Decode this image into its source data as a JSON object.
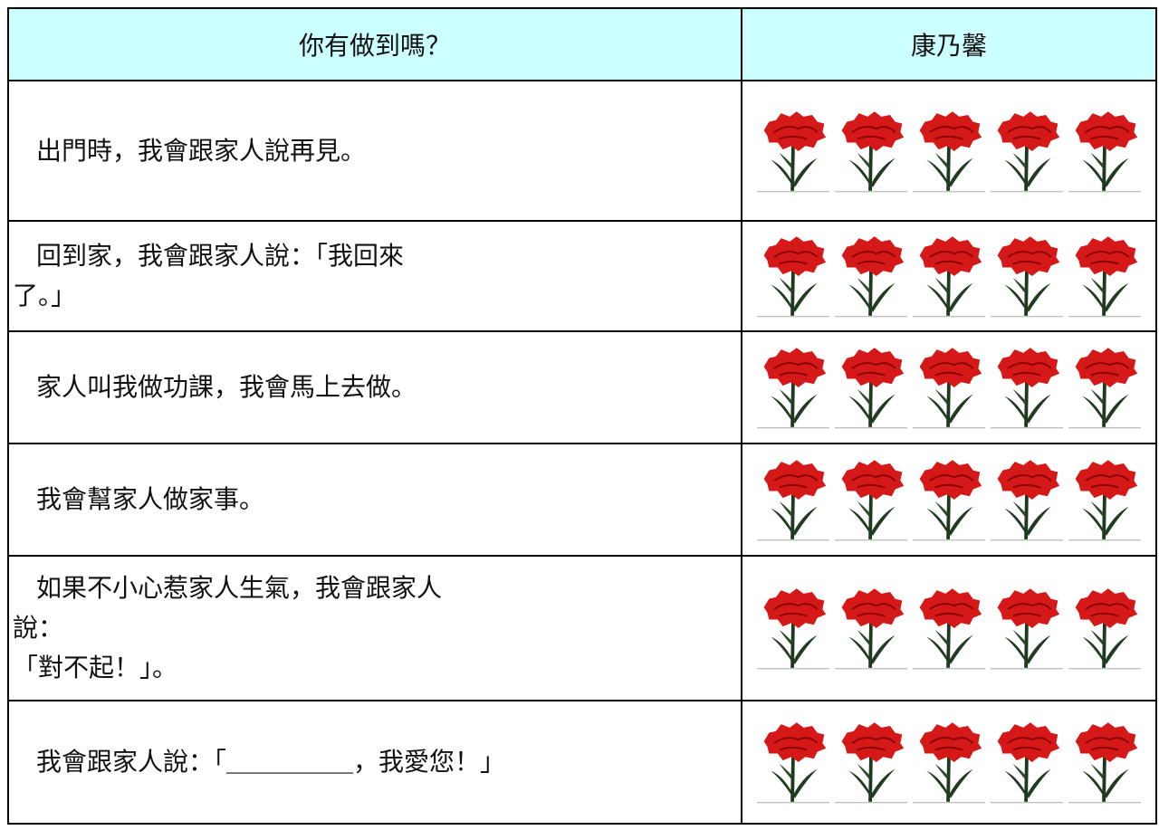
{
  "table": {
    "header": [
      "你有做到嗎？",
      "康乃馨"
    ],
    "rows": [
      {
        "lines": [
          "出門時，我會跟家人說再見。"
        ]
      },
      {
        "lines": [
          "回到家，我會跟家人說：「我回來",
          "了。」"
        ]
      },
      {
        "lines": [
          "家人叫我做功課，我會馬上去做。"
        ]
      },
      {
        "lines": [
          "我會幫家人做家事。"
        ]
      },
      {
        "lines": [
          "如果不小心惹家人生氣，我會跟家人",
          "說：",
          "「對不起！」。"
        ]
      },
      {
        "lines": [
          "我會跟家人說：「＿＿＿＿＿，我愛您！」"
        ]
      }
    ]
  }
}
